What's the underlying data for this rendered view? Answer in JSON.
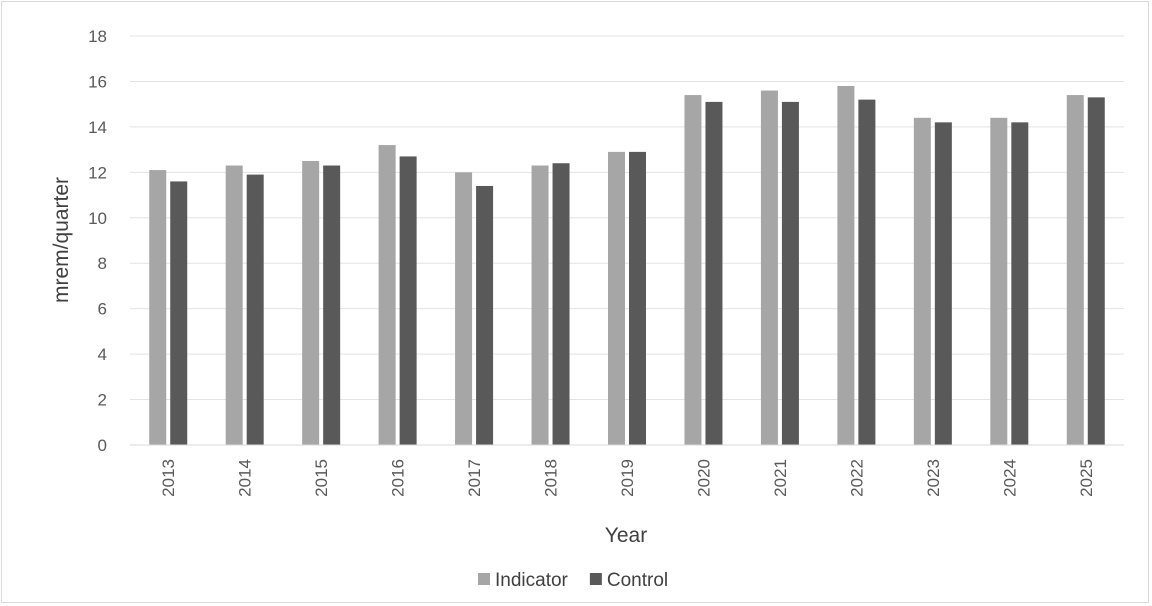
{
  "chart_data": {
    "type": "bar",
    "title": "",
    "xlabel": "Year",
    "ylabel": "mrem/quarter",
    "ylim": [
      0,
      18
    ],
    "yticks": [
      0,
      2,
      4,
      6,
      8,
      10,
      12,
      14,
      16,
      18
    ],
    "grid": true,
    "legend": "bottom",
    "categories": [
      "2013",
      "2014",
      "2015",
      "2016",
      "2017",
      "2018",
      "2019",
      "2020",
      "2021",
      "2022",
      "2023",
      "2024",
      "2025"
    ],
    "series": [
      {
        "name": "Indicator",
        "color": "#a6a6a6",
        "values": [
          12.1,
          12.3,
          12.5,
          13.2,
          12.0,
          12.3,
          12.9,
          15.4,
          15.6,
          15.8,
          14.4,
          14.4,
          15.4
        ]
      },
      {
        "name": "Control",
        "color": "#595959",
        "values": [
          11.6,
          11.9,
          12.3,
          12.7,
          11.4,
          12.4,
          12.9,
          15.1,
          15.1,
          15.2,
          14.2,
          14.2,
          15.3
        ]
      }
    ]
  }
}
